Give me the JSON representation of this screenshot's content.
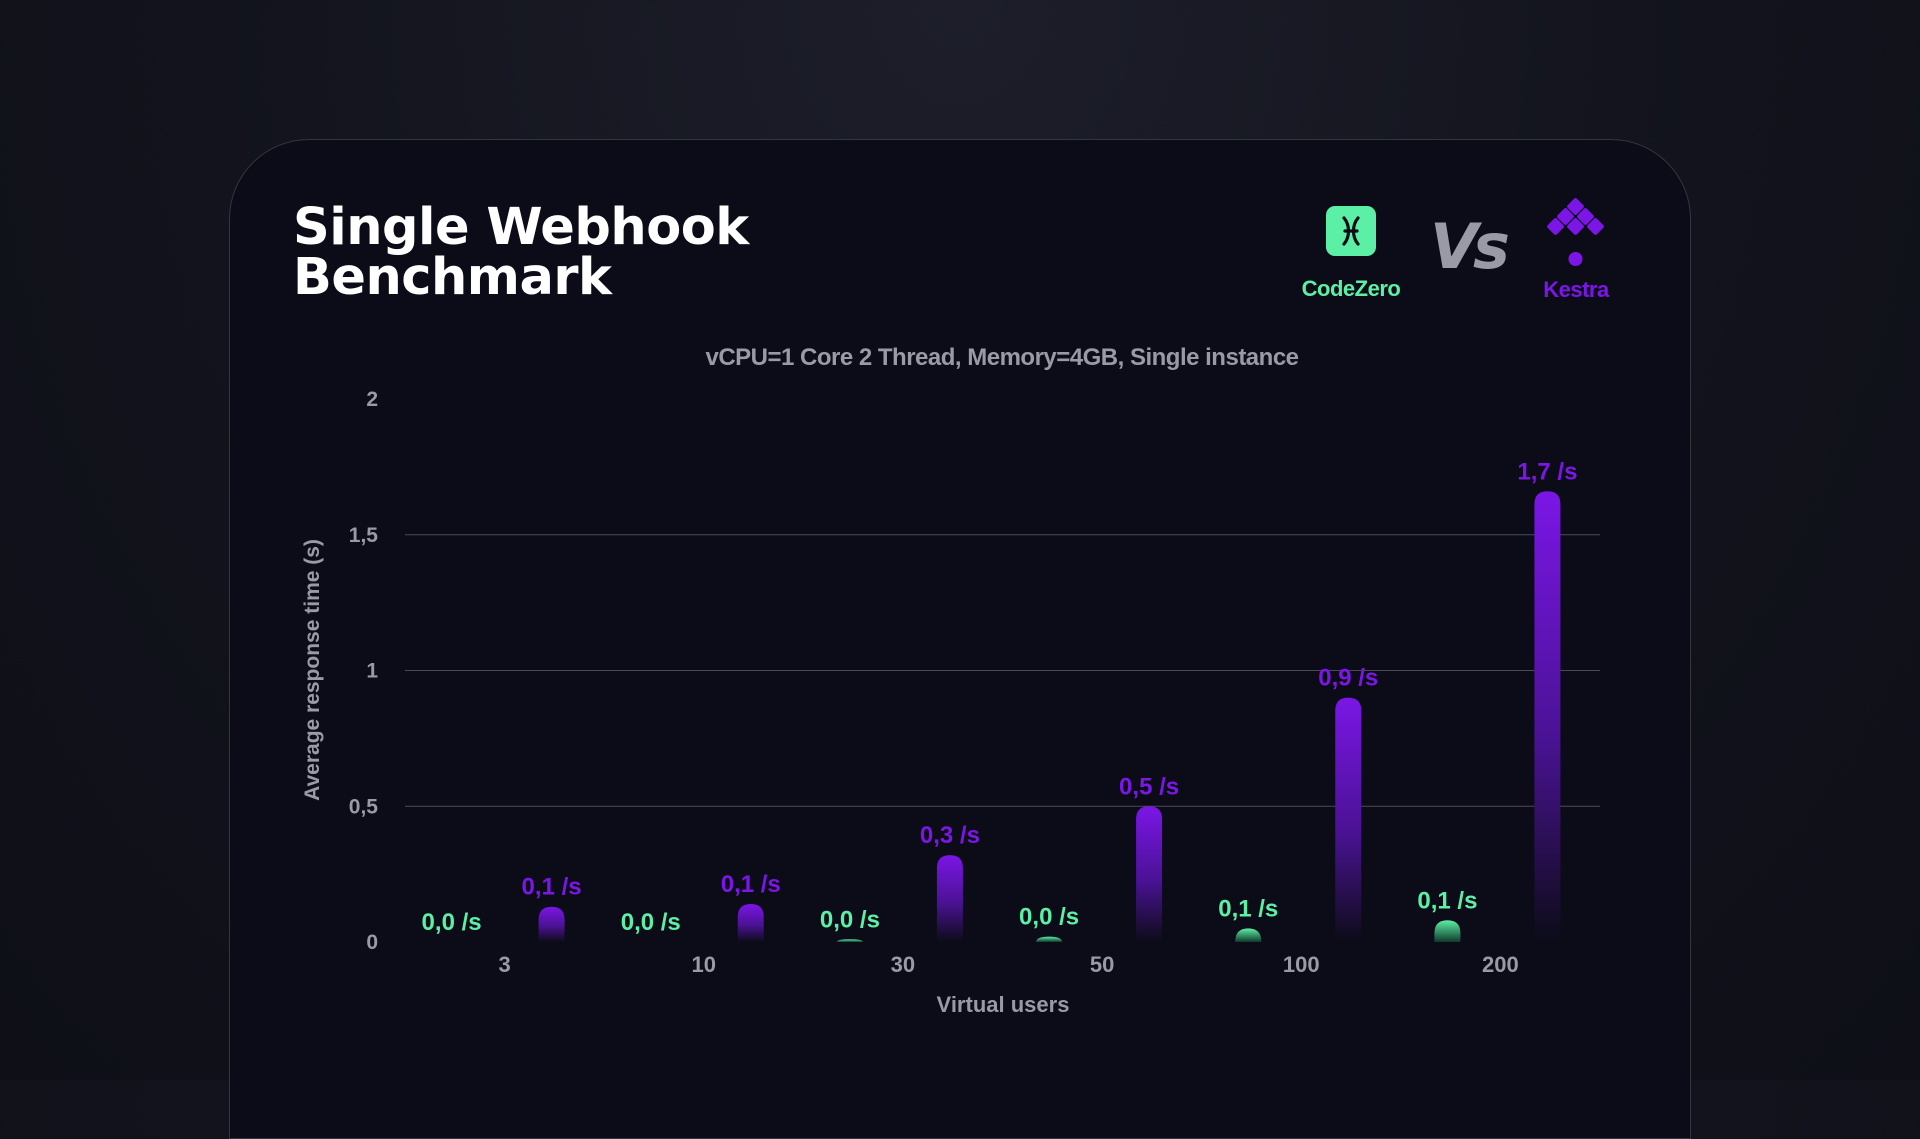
{
  "header": {
    "title_line1": "Single Webhook",
    "title_line2": "Benchmark",
    "vs_label": "Vs"
  },
  "logos": {
    "left": {
      "name": "CodeZero",
      "icon": "codezero-logo-icon",
      "color": "#5cf0a6"
    },
    "right": {
      "name": "Kestra",
      "icon": "kestra-logo-icon",
      "color": "#7b16e6"
    }
  },
  "chart_data": {
    "type": "bar",
    "subtitle": "vCPU=1 Core 2 Thread, Memory=4GB, Single instance",
    "xlabel": "Virtual users",
    "ylabel": "Average response time (s)",
    "ylim": [
      0,
      2
    ],
    "yticks": [
      "0",
      "0,5",
      "1",
      "1,5",
      "2"
    ],
    "grid": true,
    "categories": [
      "3",
      "10",
      "30",
      "50",
      "100",
      "200"
    ],
    "series": [
      {
        "name": "CodeZero",
        "color": "#5cf0a6",
        "values": [
          0.0,
          0.0,
          0.01,
          0.02,
          0.05,
          0.08
        ],
        "labels": [
          "0,0 /s",
          "0,0 /s",
          "0,0 /s",
          "0,0 /s",
          "0,1 /s",
          "0,1 /s"
        ]
      },
      {
        "name": "Kestra",
        "color": "#7b16e6",
        "values": [
          0.13,
          0.14,
          0.32,
          0.5,
          0.9,
          1.66
        ],
        "labels": [
          "0,1 /s",
          "0,1 /s",
          "0,3 /s",
          "0,5 /s",
          "0,9 /s",
          "1,7 /s"
        ]
      }
    ]
  }
}
